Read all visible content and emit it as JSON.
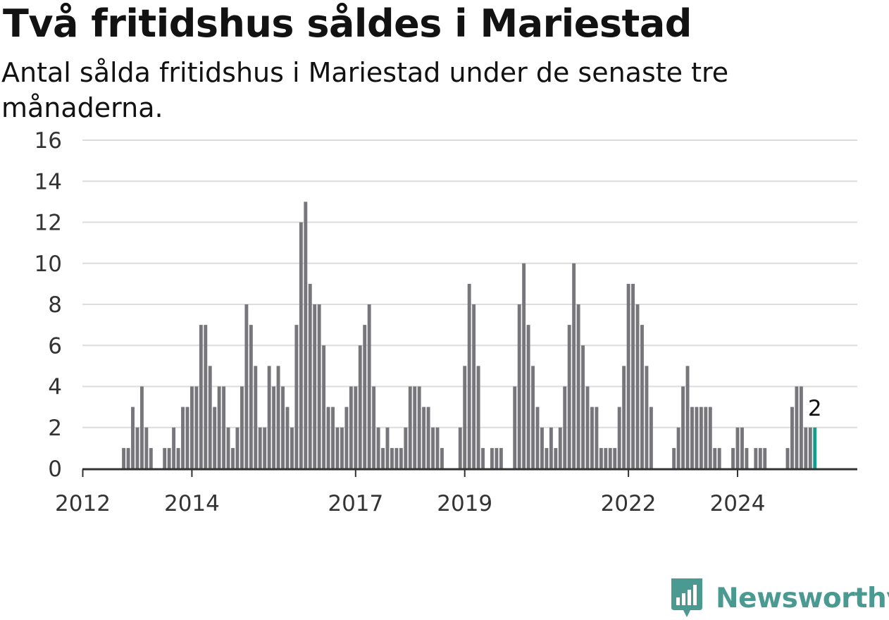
{
  "title": "Två fritidshus såldes i Mariestad",
  "subtitle": "Antal sålda fritidshus i Mariestad under de senaste tre månaderna.",
  "brand": "Newsworthy",
  "colors": {
    "bar": "#76767b",
    "highlight": "#17998b",
    "grid": "#dcdcdc",
    "axis": "#333333",
    "brand": "#4a9a91"
  },
  "chart_data": {
    "type": "bar",
    "title": "Två fritidshus såldes i Mariestad",
    "subtitle": "Antal sålda fritidshus i Mariestad under de senaste tre månaderna.",
    "x_start": "2011-12",
    "x_end": "2024-12",
    "x_unit": "month",
    "ylim": [
      0,
      16
    ],
    "yticks": [
      0,
      2,
      4,
      6,
      8,
      10,
      12,
      14,
      16
    ],
    "xticks": [
      {
        "label": "2012",
        "date": "2012-01"
      },
      {
        "label": "2014",
        "date": "2014-01"
      },
      {
        "label": "2017",
        "date": "2017-01"
      },
      {
        "label": "2019",
        "date": "2019-01"
      },
      {
        "label": "2022",
        "date": "2022-01"
      },
      {
        "label": "2024",
        "date": "2024-01"
      }
    ],
    "grid": true,
    "values": [
      0,
      0,
      0,
      0,
      0,
      0,
      0,
      0,
      0,
      0,
      1,
      1,
      3,
      2,
      4,
      2,
      1,
      0,
      0,
      1,
      1,
      2,
      1,
      3,
      3,
      4,
      4,
      7,
      7,
      5,
      3,
      4,
      4,
      2,
      1,
      2,
      4,
      8,
      7,
      5,
      2,
      2,
      5,
      4,
      5,
      4,
      3,
      2,
      7,
      12,
      13,
      9,
      8,
      8,
      6,
      3,
      3,
      2,
      2,
      3,
      4,
      4,
      6,
      7,
      8,
      4,
      2,
      1,
      2,
      1,
      1,
      1,
      2,
      4,
      4,
      4,
      3,
      3,
      2,
      2,
      1,
      0,
      0,
      0,
      2,
      5,
      9,
      8,
      5,
      1,
      0,
      1,
      1,
      1,
      0,
      0,
      4,
      8,
      10,
      7,
      5,
      3,
      2,
      1,
      2,
      1,
      2,
      4,
      7,
      10,
      8,
      6,
      4,
      3,
      3,
      1,
      1,
      1,
      1,
      3,
      5,
      9,
      9,
      8,
      7,
      5,
      3,
      0,
      0,
      0,
      0,
      1,
      2,
      4,
      5,
      3,
      3,
      3,
      3,
      3,
      1,
      1,
      0,
      0,
      1,
      2,
      2,
      1,
      0,
      1,
      1,
      1,
      0,
      0,
      0,
      0,
      1,
      3,
      4,
      4,
      2,
      2,
      2
    ],
    "highlight_last": true,
    "annotation": {
      "text": "2",
      "target": "last"
    }
  }
}
